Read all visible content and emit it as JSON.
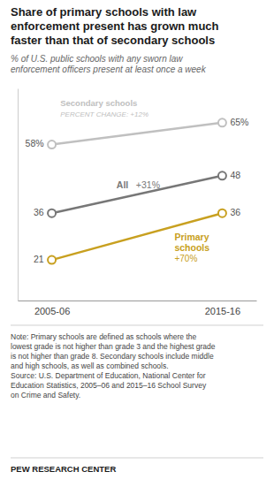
{
  "chart_data": {
    "type": "line",
    "title": "Share of primary schools with law\nenforcement present has grown much\nfaster than that of secondary schools",
    "subtitle": "% of U.S. public schools with any sworn law\nenforcement officers present at least once a week",
    "categories": [
      "2005-06",
      "2015-16"
    ],
    "series": [
      {
        "name": "Secondary schools",
        "color": "#c0c0c0",
        "values": [
          58,
          65
        ],
        "value_labels": [
          "58%",
          "65%"
        ]
      },
      {
        "name": "All",
        "color": "#777777",
        "values": [
          36,
          48
        ]
      },
      {
        "name": "Primary\nschools",
        "color": "#c8a020",
        "values": [
          21,
          36
        ]
      }
    ],
    "annotations": [
      "PERCENT CHANGE: +12%",
      "+31%",
      "+70%"
    ],
    "ylim": [
      8,
      76
    ],
    "yticks": [],
    "grid": false,
    "marker": "circle",
    "data_labels": true,
    "tick_labels": "x",
    "note": "Note: Primary schools are defined as schools where the\nlowest grade is not higher than grade 3 and the highest grade\nis not higher than grade 8. Secondary schools include middle\nand high schools, as well as combined schools.\nSource: U.S. Department of Education, National Center for\nEducation Statistics, 2005–06 and 2015–16 School Survey\non Crime and Safety.",
    "credit": "PEW RESEARCH CENTER"
  }
}
